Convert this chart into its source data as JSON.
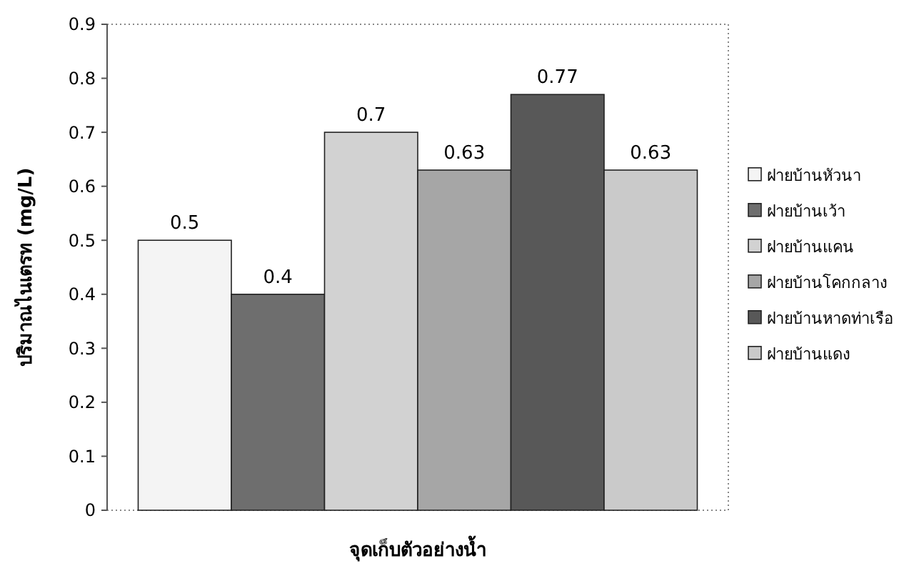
{
  "chart_data": {
    "type": "bar",
    "xlabel": "จุดเก็บตัวอย่างน้ำ",
    "ylabel": "ปริมาณไนเตรท (mg/L)",
    "categories": [
      null
    ],
    "series": [
      {
        "name": "ฝายบ้านหัวนา",
        "color": "#f4f4f4",
        "values": [
          0.5
        ]
      },
      {
        "name": "ฝายบ้านเว้า",
        "color": "#6e6e6e",
        "values": [
          0.4
        ]
      },
      {
        "name": "ฝายบ้านแคน",
        "color": "#d2d2d2",
        "values": [
          0.7
        ]
      },
      {
        "name": "ฝายบ้านโคกกลาง",
        "color": "#a6a6a6",
        "values": [
          0.63
        ]
      },
      {
        "name": "ฝายบ้านหาดท่าเรือ",
        "color": "#585858",
        "values": [
          0.77
        ]
      },
      {
        "name": "ฝายบ้านแดง",
        "color": "#cacaca",
        "values": [
          0.63
        ]
      }
    ],
    "ylim": [
      0,
      0.9
    ],
    "yticks": [
      0,
      0.1,
      0.2,
      0.3,
      0.4,
      0.5,
      0.6,
      0.7,
      0.8,
      0.9
    ],
    "data_labels": true,
    "legend": "right",
    "grid": false
  }
}
